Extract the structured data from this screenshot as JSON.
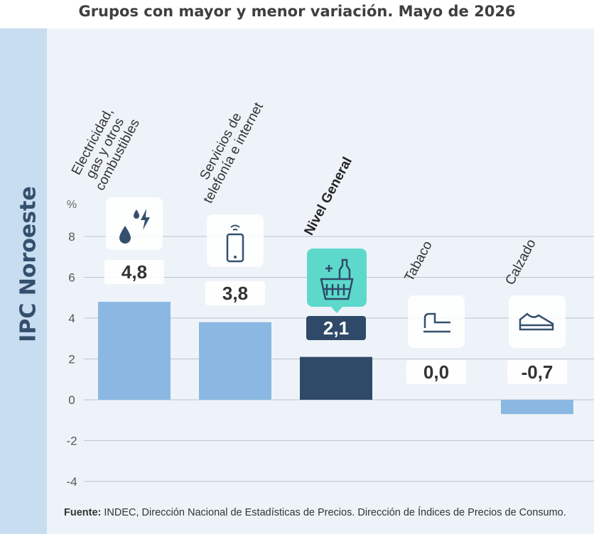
{
  "chart_data": {
    "type": "bar",
    "title": "Grupos con mayor y menor variación. Mayo de 2026",
    "region": "IPC Noroeste",
    "y_unit": "%",
    "categories": [
      "Electricidad,\ngas y otros\ncombustibles",
      "Servicios de\ntelefonía e internet",
      "Nivel General",
      "Tabaco",
      "Calzado"
    ],
    "values": [
      4.8,
      3.8,
      2.1,
      0.0,
      -0.7
    ],
    "value_labels": [
      "4,8",
      "3,8",
      "2,1",
      "0,0",
      "-0,7"
    ],
    "colors": [
      "#8ab8e2",
      "#8ab8e2",
      "#2f4a68",
      "#8ab8e2",
      "#8ab8e2"
    ],
    "ylim": [
      -4,
      8
    ],
    "yticks": [
      -4,
      -2,
      0,
      2,
      4,
      6,
      8
    ],
    "grid": true,
    "source_label": "Fuente:",
    "source_text": "INDEC, Dirección Nacional de Estadísticas de Precios. Dirección de Índices de Precios de Consumo."
  }
}
